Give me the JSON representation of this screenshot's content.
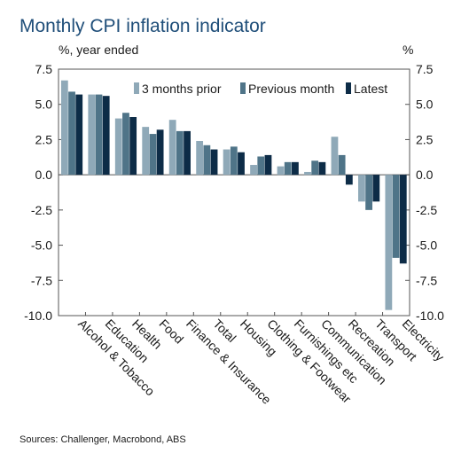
{
  "chart_data": {
    "type": "bar",
    "title": "Monthly CPI inflation indicator",
    "ylabel_left": "%, year ended",
    "ylabel_right": "%",
    "ylim": [
      -10,
      7.5
    ],
    "yticks": [
      "7.5",
      "5.0",
      "2.5",
      "0.0",
      "-2.5",
      "-5.0",
      "-7.5",
      "-10.0"
    ],
    "ytick_values": [
      7.5,
      5.0,
      2.5,
      0.0,
      -2.5,
      -5.0,
      -7.5,
      -10.0
    ],
    "categories": [
      "Alcohol & Tobacco",
      "Education",
      "Health",
      "Food",
      "Finance & Insurance",
      "Total",
      "Housing",
      "Clothing & Footwear",
      "Furnishings etc",
      "Communication",
      "Recreation",
      "Transport",
      "Electricity"
    ],
    "series": [
      {
        "name": "3 months prior",
        "color": "#8fa9b8",
        "values": [
          6.7,
          5.7,
          4.0,
          3.4,
          3.9,
          2.4,
          1.8,
          0.7,
          0.6,
          0.2,
          2.7,
          -1.9,
          -9.6
        ]
      },
      {
        "name": "Previous month",
        "color": "#4f7488",
        "values": [
          5.9,
          5.7,
          4.4,
          2.9,
          3.1,
          2.1,
          2.0,
          1.3,
          0.9,
          1.0,
          1.4,
          -2.5,
          -5.9
        ]
      },
      {
        "name": "Latest",
        "color": "#0d2c47",
        "values": [
          5.7,
          5.6,
          4.1,
          3.2,
          3.1,
          1.8,
          1.6,
          1.4,
          0.9,
          0.9,
          -0.7,
          -1.9,
          -6.3
        ]
      }
    ],
    "legend_position": "top-right",
    "grid": false
  },
  "source": "Sources: Challenger, Macrobond, ABS"
}
